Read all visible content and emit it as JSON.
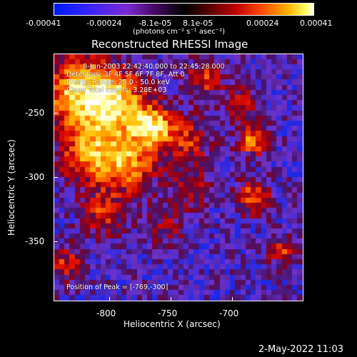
{
  "colorbar": {
    "ticks": [
      "-0.00041",
      "-0.00024",
      "-8.1e-05",
      "8.1e-05",
      "0.00024",
      "0.00041"
    ],
    "units": "(photons cm⁻² s⁻¹ asec⁻²)"
  },
  "plot": {
    "title": "Reconstructed RHESSI Image",
    "info_lines": [
      "8-Jun-2003 22:42:40.000 to 22:45:28.000",
      "Detectors: 3F 4F 5F 6F 7F 8F, Att 0",
      "Energy Range: 25.0 - 50.0 keV",
      "Clean     Total counts: 3.28E+03"
    ],
    "peak_text": "Position of Peak = [-769,-300]",
    "x_axis": {
      "label": "Heliocentric X (arcsec)",
      "ticks": [
        "-800",
        "-750",
        "-700"
      ]
    },
    "y_axis": {
      "label": "Heliocentric Y (arcsec)",
      "ticks": [
        "-250",
        "-300",
        "-350"
      ]
    }
  },
  "footer": {
    "date": "2-May-2022 11:03"
  }
}
